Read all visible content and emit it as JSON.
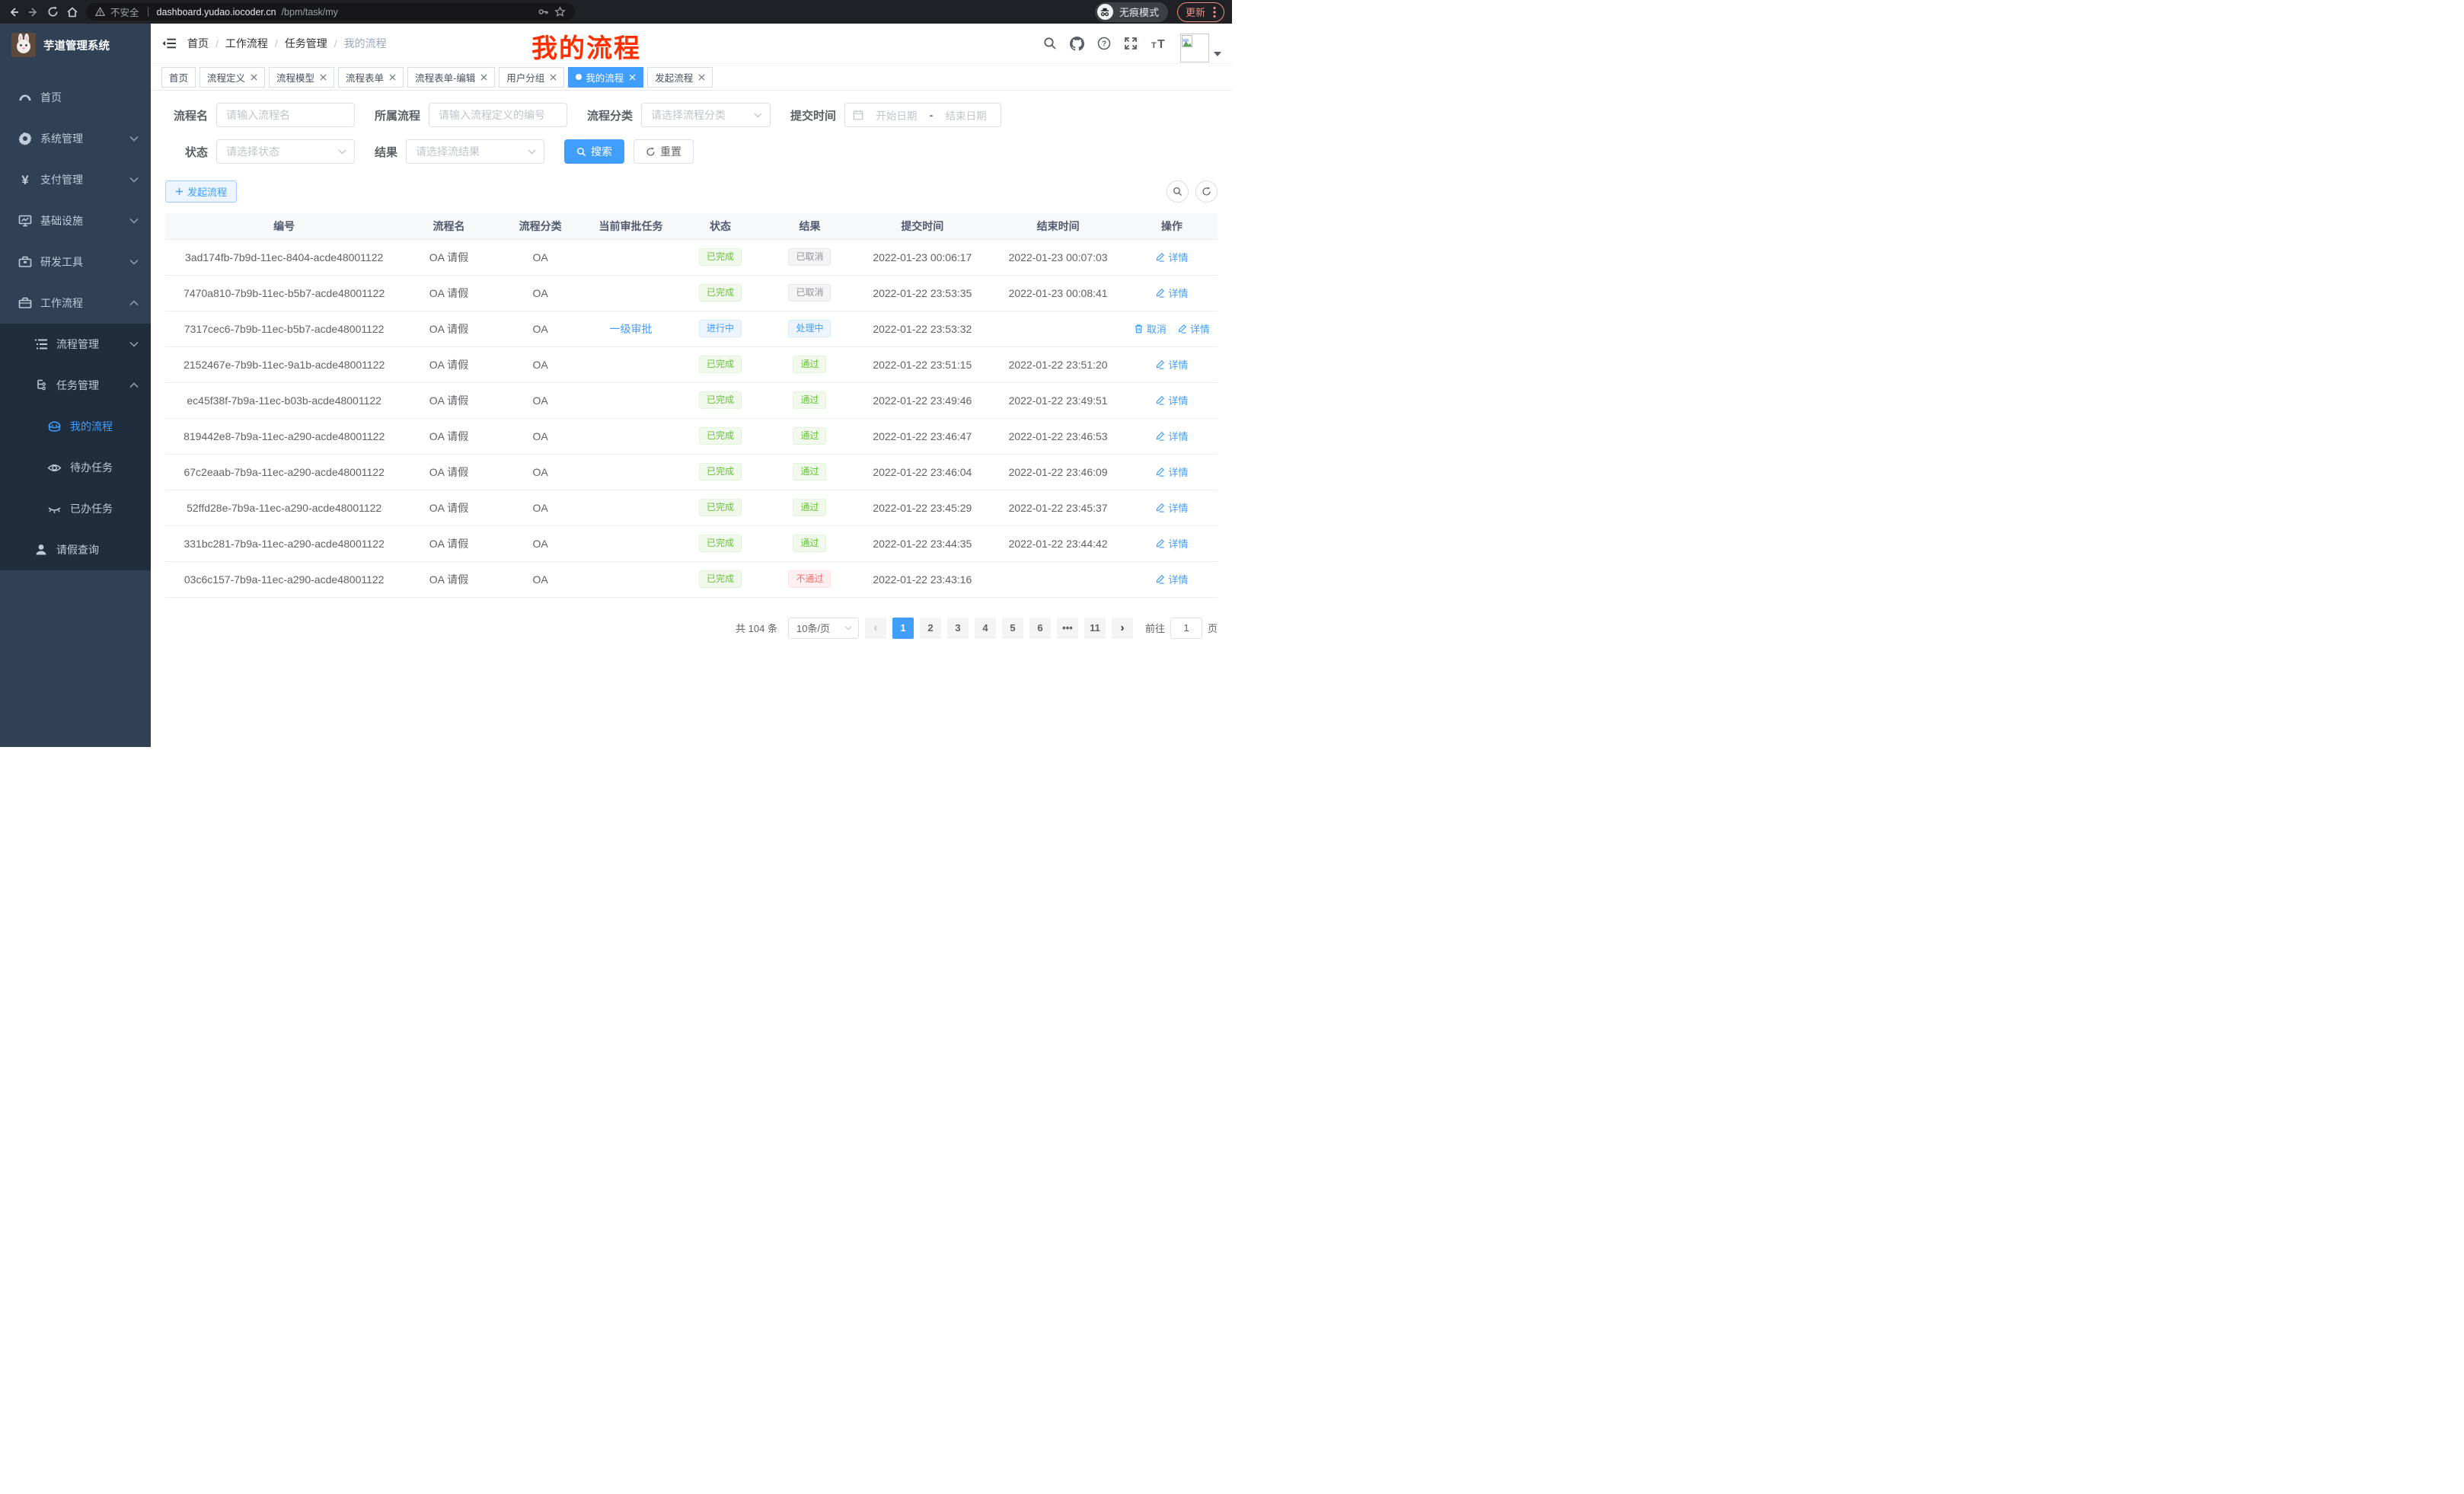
{
  "browser": {
    "security_label": "不安全",
    "url_host": "dashboard.yudao.iocoder.cn",
    "url_path": "/bpm/task/my",
    "incognito_label": "无痕模式",
    "update_label": "更新"
  },
  "sidebar": {
    "app_title": "芋道管理系统",
    "items": [
      {
        "label": "首页",
        "icon": "dashboard-icon",
        "level": 1
      },
      {
        "label": "系统管理",
        "icon": "gear-icon",
        "level": 1,
        "chevron": "down"
      },
      {
        "label": "支付管理",
        "icon": "yen-icon",
        "level": 1,
        "chevron": "down"
      },
      {
        "label": "基础设施",
        "icon": "monitor-icon",
        "level": 1,
        "chevron": "down"
      },
      {
        "label": "研发工具",
        "icon": "toolbox-icon",
        "level": 1,
        "chevron": "down"
      },
      {
        "label": "工作流程",
        "icon": "briefcase-icon",
        "level": 1,
        "chevron": "up"
      },
      {
        "label": "流程管理",
        "icon": "list-icon",
        "level": 2,
        "chevron": "down"
      },
      {
        "label": "任务管理",
        "icon": "tree-icon",
        "level": 2,
        "chevron": "up"
      },
      {
        "label": "我的流程",
        "icon": "robot-icon",
        "level": 3,
        "active": true
      },
      {
        "label": "待办任务",
        "icon": "eye-icon",
        "level": 3
      },
      {
        "label": "已办任务",
        "icon": "eye-closed-icon",
        "level": 3
      },
      {
        "label": "请假查询",
        "icon": "user-icon",
        "level": 2
      }
    ]
  },
  "breadcrumb": [
    "首页",
    "工作流程",
    "任务管理",
    "我的流程"
  ],
  "annotation": {
    "text": "我的流程"
  },
  "tabs": [
    {
      "label": "首页",
      "closable": false,
      "active": false
    },
    {
      "label": "流程定义",
      "closable": true,
      "active": false
    },
    {
      "label": "流程模型",
      "closable": true,
      "active": false
    },
    {
      "label": "流程表单",
      "closable": true,
      "active": false
    },
    {
      "label": "流程表单-编辑",
      "closable": true,
      "active": false
    },
    {
      "label": "用户分组",
      "closable": true,
      "active": false
    },
    {
      "label": "我的流程",
      "closable": true,
      "active": true
    },
    {
      "label": "发起流程",
      "closable": true,
      "active": false
    }
  ],
  "filters": {
    "name_label": "流程名",
    "name_placeholder": "请输入流程名",
    "definition_label": "所属流程",
    "definition_placeholder": "请输入流程定义的编号",
    "category_label": "流程分类",
    "category_placeholder": "请选择流程分类",
    "time_label": "提交时间",
    "date_start": "开始日期",
    "date_separator": "-",
    "date_end": "结束日期",
    "status_label": "状态",
    "status_placeholder": "请选择状态",
    "result_label": "结果",
    "result_placeholder": "请选择流结果",
    "search_label": "搜索",
    "reset_label": "重置"
  },
  "toolbar": {
    "create_label": "发起流程"
  },
  "table": {
    "columns": [
      "编号",
      "流程名",
      "流程分类",
      "当前审批任务",
      "状态",
      "结果",
      "提交时间",
      "结束时间",
      "操作"
    ],
    "col_widths": [
      "22.6%",
      "8.7%",
      "8.7%",
      "8.5%",
      "8.5%",
      "8.5%",
      "12.9%",
      "12.9%",
      "8.7%"
    ],
    "action_detail": "详情",
    "action_cancel": "取消",
    "rows": [
      {
        "id": "3ad174fb-7b9d-11ec-8404-acde48001122",
        "name": "OA 请假",
        "category": "OA",
        "task": "",
        "status": {
          "text": "已完成",
          "type": "success"
        },
        "result": {
          "text": "已取消",
          "type": "info"
        },
        "submit_time": "2022-01-23 00:06:17",
        "end_time": "2022-01-23 00:07:03",
        "cancellable": false
      },
      {
        "id": "7470a810-7b9b-11ec-b5b7-acde48001122",
        "name": "OA 请假",
        "category": "OA",
        "task": "",
        "status": {
          "text": "已完成",
          "type": "success"
        },
        "result": {
          "text": "已取消",
          "type": "info"
        },
        "submit_time": "2022-01-22 23:53:35",
        "end_time": "2022-01-23 00:08:41",
        "cancellable": false
      },
      {
        "id": "7317cec6-7b9b-11ec-b5b7-acde48001122",
        "name": "OA 请假",
        "category": "OA",
        "task": "一级审批",
        "status": {
          "text": "进行中",
          "type": "primary"
        },
        "result": {
          "text": "处理中",
          "type": "primary"
        },
        "submit_time": "2022-01-22 23:53:32",
        "end_time": "",
        "cancellable": true
      },
      {
        "id": "2152467e-7b9b-11ec-9a1b-acde48001122",
        "name": "OA 请假",
        "category": "OA",
        "task": "",
        "status": {
          "text": "已完成",
          "type": "success"
        },
        "result": {
          "text": "通过",
          "type": "success"
        },
        "submit_time": "2022-01-22 23:51:15",
        "end_time": "2022-01-22 23:51:20",
        "cancellable": false
      },
      {
        "id": "ec45f38f-7b9a-11ec-b03b-acde48001122",
        "name": "OA 请假",
        "category": "OA",
        "task": "",
        "status": {
          "text": "已完成",
          "type": "success"
        },
        "result": {
          "text": "通过",
          "type": "success"
        },
        "submit_time": "2022-01-22 23:49:46",
        "end_time": "2022-01-22 23:49:51",
        "cancellable": false
      },
      {
        "id": "819442e8-7b9a-11ec-a290-acde48001122",
        "name": "OA 请假",
        "category": "OA",
        "task": "",
        "status": {
          "text": "已完成",
          "type": "success"
        },
        "result": {
          "text": "通过",
          "type": "success"
        },
        "submit_time": "2022-01-22 23:46:47",
        "end_time": "2022-01-22 23:46:53",
        "cancellable": false
      },
      {
        "id": "67c2eaab-7b9a-11ec-a290-acde48001122",
        "name": "OA 请假",
        "category": "OA",
        "task": "",
        "status": {
          "text": "已完成",
          "type": "success"
        },
        "result": {
          "text": "通过",
          "type": "success"
        },
        "submit_time": "2022-01-22 23:46:04",
        "end_time": "2022-01-22 23:46:09",
        "cancellable": false
      },
      {
        "id": "52ffd28e-7b9a-11ec-a290-acde48001122",
        "name": "OA 请假",
        "category": "OA",
        "task": "",
        "status": {
          "text": "已完成",
          "type": "success"
        },
        "result": {
          "text": "通过",
          "type": "success"
        },
        "submit_time": "2022-01-22 23:45:29",
        "end_time": "2022-01-22 23:45:37",
        "cancellable": false
      },
      {
        "id": "331bc281-7b9a-11ec-a290-acde48001122",
        "name": "OA 请假",
        "category": "OA",
        "task": "",
        "status": {
          "text": "已完成",
          "type": "success"
        },
        "result": {
          "text": "通过",
          "type": "success"
        },
        "submit_time": "2022-01-22 23:44:35",
        "end_time": "2022-01-22 23:44:42",
        "cancellable": false
      },
      {
        "id": "03c6c157-7b9a-11ec-a290-acde48001122",
        "name": "OA 请假",
        "category": "OA",
        "task": "",
        "status": {
          "text": "已完成",
          "type": "success"
        },
        "result": {
          "text": "不通过",
          "type": "danger"
        },
        "submit_time": "2022-01-22 23:43:16",
        "end_time": "",
        "cancellable": false
      }
    ]
  },
  "pagination": {
    "total_text": "共 104 条",
    "page_size": "10条/页",
    "pages": [
      "1",
      "2",
      "3",
      "4",
      "5",
      "6",
      "•••",
      "11"
    ],
    "active_page": "1",
    "goto_prefix": "前往",
    "goto_value": "1",
    "goto_suffix": "页"
  }
}
